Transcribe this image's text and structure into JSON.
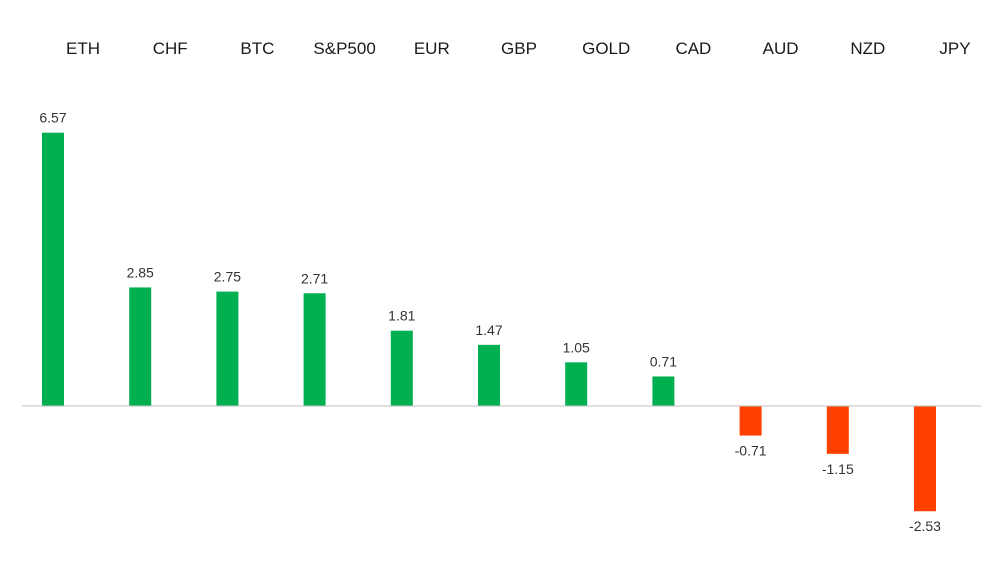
{
  "chart_data": {
    "type": "bar",
    "title": "",
    "xlabel": "",
    "ylabel": "",
    "categories": [
      "ETH",
      "CHF",
      "BTC",
      "S&P500",
      "EUR",
      "GBP",
      "GOLD",
      "CAD",
      "AUD",
      "NZD",
      "JPY"
    ],
    "values": [
      6.57,
      2.85,
      2.75,
      2.71,
      1.81,
      1.47,
      1.05,
      0.71,
      -0.71,
      -1.15,
      -2.53
    ],
    "value_labels": [
      "6.57",
      "2.85",
      "2.75",
      "2.71",
      "1.81",
      "1.47",
      "1.05",
      "0.71",
      "-0.71",
      "-1.15",
      "-2.53"
    ],
    "ylim": [
      -3.9,
      8.5
    ],
    "grid": false,
    "legend": "none",
    "category_axis_position": "top",
    "colors": {
      "positive": "#00B050",
      "negative": "#FF4000",
      "axis": "#BFBFBF"
    }
  }
}
